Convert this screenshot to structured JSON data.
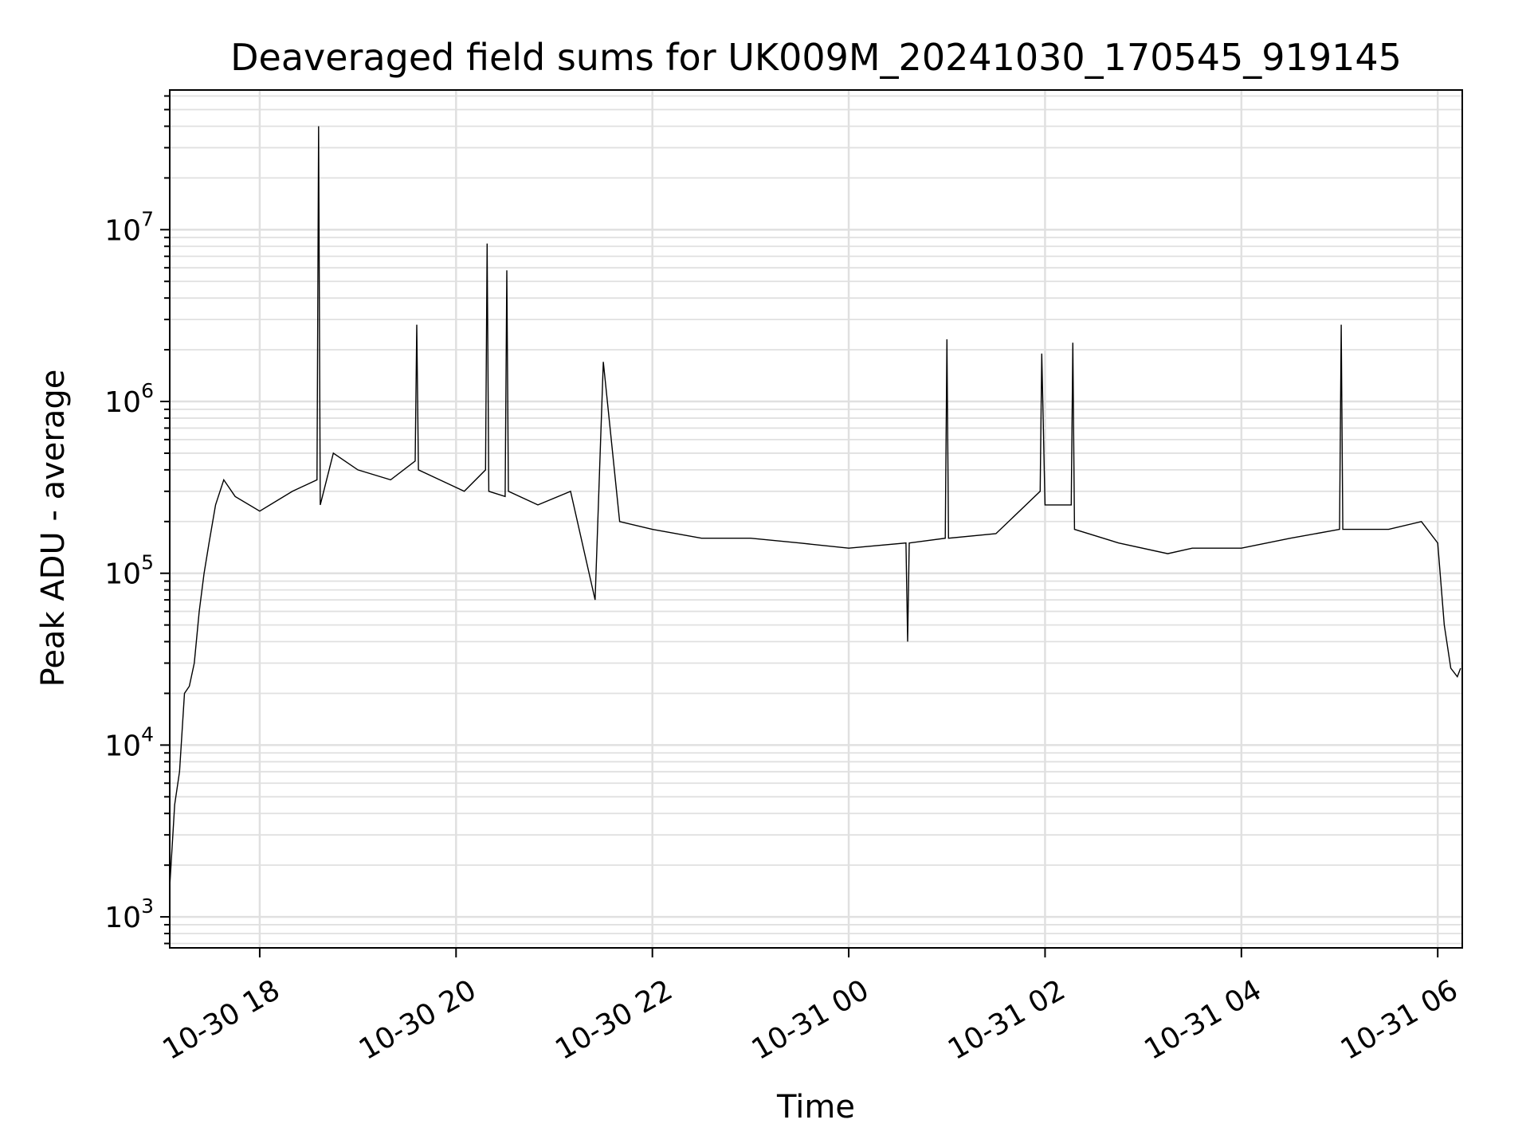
{
  "chart_data": {
    "type": "line",
    "title": "Deaveraged field sums for UK009M_20241030_170545_919145",
    "xlabel": "Time",
    "ylabel": "Peak ADU - average",
    "y_scale": "log",
    "ylim": [
      660,
      65000000
    ],
    "xlim": [
      "2024-10-30 17:05",
      "2024-10-31 06:15"
    ],
    "grid": true,
    "line_color": "#000000",
    "grid_color": "#e0e0e0",
    "x_ticks": [
      {
        "value": "2024-10-30 18:00",
        "label": "10-30 18"
      },
      {
        "value": "2024-10-30 20:00",
        "label": "10-30 20"
      },
      {
        "value": "2024-10-30 22:00",
        "label": "10-30 22"
      },
      {
        "value": "2024-10-31 00:00",
        "label": "10-31 00"
      },
      {
        "value": "2024-10-31 02:00",
        "label": "10-31 02"
      },
      {
        "value": "2024-10-31 04:00",
        "label": "10-31 04"
      },
      {
        "value": "2024-10-31 06:00",
        "label": "10-31 06"
      }
    ],
    "y_ticks": [
      {
        "value": 1000,
        "base": "10",
        "exp": "3"
      },
      {
        "value": 10000,
        "base": "10",
        "exp": "4"
      },
      {
        "value": 100000,
        "base": "10",
        "exp": "5"
      },
      {
        "value": 1000000,
        "base": "10",
        "exp": "6"
      },
      {
        "value": 10000000,
        "base": "10",
        "exp": "7"
      }
    ],
    "series": [
      {
        "x": [
          "2024-10-30 17:05",
          "2024-10-30 17:08",
          "2024-10-30 17:11",
          "2024-10-30 17:14",
          "2024-10-30 17:17",
          "2024-10-30 17:20",
          "2024-10-30 17:23",
          "2024-10-30 17:26",
          "2024-10-30 17:29",
          "2024-10-30 17:33",
          "2024-10-30 17:38",
          "2024-10-30 17:45",
          "2024-10-30 18:00",
          "2024-10-30 18:20",
          "2024-10-30 18:35",
          "2024-10-30 18:36",
          "2024-10-30 18:37",
          "2024-10-30 18:45",
          "2024-10-30 19:00",
          "2024-10-30 19:20",
          "2024-10-30 19:35",
          "2024-10-30 19:36",
          "2024-10-30 19:37",
          "2024-10-30 19:50",
          "2024-10-30 20:05",
          "2024-10-30 20:18",
          "2024-10-30 20:19",
          "2024-10-30 20:20",
          "2024-10-30 20:30",
          "2024-10-30 20:31",
          "2024-10-30 20:32",
          "2024-10-30 20:50",
          "2024-10-30 21:10",
          "2024-10-30 21:25",
          "2024-10-30 21:30",
          "2024-10-30 21:40",
          "2024-10-30 22:00",
          "2024-10-30 22:30",
          "2024-10-30 23:00",
          "2024-10-30 23:30",
          "2024-10-31 00:00",
          "2024-10-31 00:35",
          "2024-10-31 00:36",
          "2024-10-31 00:37",
          "2024-10-31 00:59",
          "2024-10-31 01:00",
          "2024-10-31 01:01",
          "2024-10-31 01:30",
          "2024-10-31 01:57",
          "2024-10-31 01:58",
          "2024-10-31 02:00",
          "2024-10-31 02:16",
          "2024-10-31 02:17",
          "2024-10-31 02:18",
          "2024-10-31 02:45",
          "2024-10-31 03:15",
          "2024-10-31 03:30",
          "2024-10-31 04:00",
          "2024-10-31 04:30",
          "2024-10-31 05:00",
          "2024-10-31 05:01",
          "2024-10-31 05:02",
          "2024-10-31 05:30",
          "2024-10-31 05:50",
          "2024-10-31 06:00",
          "2024-10-31 06:04",
          "2024-10-31 06:08",
          "2024-10-31 06:12",
          "2024-10-31 06:14"
        ],
        "y": [
          1500,
          4500,
          7000,
          20000,
          22000,
          30000,
          60000,
          100000,
          150000,
          250000,
          350000,
          280000,
          230000,
          300000,
          350000,
          40000000,
          250000,
          500000,
          400000,
          350000,
          450000,
          2800000,
          400000,
          350000,
          300000,
          400000,
          8300000,
          300000,
          280000,
          5800000,
          300000,
          250000,
          300000,
          70000,
          1700000,
          200000,
          180000,
          160000,
          160000,
          150000,
          140000,
          150000,
          40000,
          150000,
          160000,
          2300000,
          160000,
          170000,
          300000,
          1900000,
          250000,
          250000,
          2200000,
          180000,
          150000,
          130000,
          140000,
          140000,
          160000,
          180000,
          2800000,
          180000,
          180000,
          200000,
          150000,
          50000,
          28000,
          25000,
          28000
        ]
      }
    ]
  }
}
